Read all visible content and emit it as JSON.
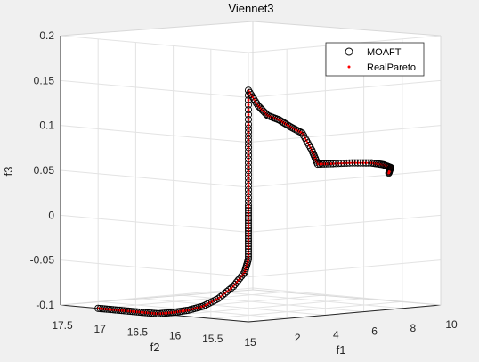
{
  "chart_data": {
    "type": "scatter",
    "title": "Viennet3",
    "xlabel": "f1",
    "ylabel": "f2",
    "zlabel": "f3",
    "xlim": [
      0,
      10
    ],
    "ylim": [
      15,
      17.5
    ],
    "zlim": [
      -0.1,
      0.2
    ],
    "x_ticks": [
      "2",
      "4",
      "6",
      "8",
      "10"
    ],
    "y_ticks": [
      "17.5",
      "17",
      "16.5",
      "16",
      "15.5",
      "15"
    ],
    "z_ticks": [
      "0.2",
      "0.15",
      "0.1",
      "0.05",
      "0",
      "-0.05",
      "-0.1"
    ],
    "grid": true,
    "legend": {
      "position": "top-right",
      "entries": [
        "MOAFT",
        "RealPareto"
      ]
    },
    "series": [
      {
        "name": "MOAFT",
        "marker": "circle",
        "color": "#000000",
        "points": [
          [
            0.0,
            17.0,
            -0.1
          ],
          [
            0.0,
            16.8,
            -0.1
          ],
          [
            0.0,
            16.6,
            -0.1
          ],
          [
            0.0,
            16.4,
            -0.1
          ],
          [
            0.0,
            16.2,
            -0.1
          ],
          [
            0.0,
            16.0,
            -0.097
          ],
          [
            0.0,
            15.8,
            -0.093
          ],
          [
            0.0,
            15.6,
            -0.087
          ],
          [
            0.0,
            15.4,
            -0.077
          ],
          [
            0.0,
            15.2,
            -0.062
          ],
          [
            0.0,
            15.05,
            -0.045
          ],
          [
            0.0,
            15.0,
            -0.03
          ],
          [
            0.0,
            15.0,
            -0.01
          ],
          [
            0.0,
            15.0,
            0.01
          ],
          [
            0.0,
            15.0,
            0.03
          ],
          [
            0.0,
            15.0,
            0.06
          ],
          [
            0.0,
            15.0,
            0.09
          ],
          [
            0.0,
            15.0,
            0.12
          ],
          [
            0.0,
            15.0,
            0.158
          ],
          [
            0.5,
            15.0,
            0.14
          ],
          [
            1.0,
            15.0,
            0.128
          ],
          [
            1.6,
            15.0,
            0.122
          ],
          [
            2.2,
            15.0,
            0.113
          ],
          [
            2.8,
            15.0,
            0.105
          ],
          [
            3.3,
            15.0,
            0.085
          ],
          [
            3.6,
            15.0,
            0.069
          ],
          [
            4.4,
            15.0,
            0.068
          ],
          [
            5.4,
            15.0,
            0.067
          ],
          [
            6.4,
            15.0,
            0.065
          ],
          [
            7.0,
            15.0,
            0.062
          ],
          [
            7.4,
            15.0,
            0.058
          ],
          [
            7.3,
            15.0,
            0.052
          ]
        ]
      },
      {
        "name": "RealPareto",
        "marker": "dot",
        "color": "#ff0000",
        "points": "same curve as MOAFT"
      }
    ]
  },
  "colors": {
    "plot_bg": "#ffffff",
    "figure_bg": "#f0f0f0",
    "grid": "#e0e0e0",
    "axis": "#262626",
    "series_moaft": "#000000",
    "series_real": "#ff0000"
  }
}
